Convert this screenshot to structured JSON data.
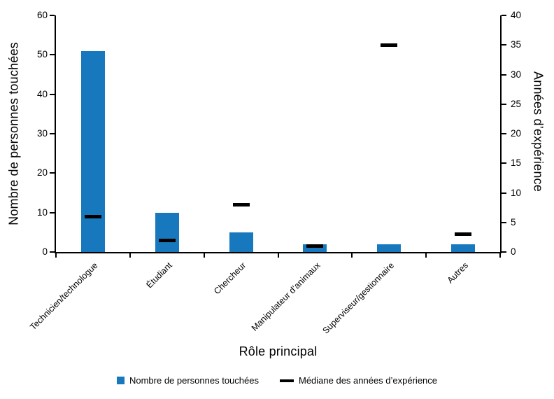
{
  "chart_data": {
    "type": "combo",
    "title": "",
    "categories": [
      "Technicien/technologue",
      "Étudiant",
      "Chercheur",
      "Manipulateur d’animaux",
      "Superviseur/gestionnaire",
      "Autres"
    ],
    "series": [
      {
        "name": "Nombre de personnes touchées",
        "type": "bar",
        "axis": "left",
        "color": "#1878be",
        "values": [
          51,
          10,
          5,
          2,
          2,
          2
        ]
      },
      {
        "name": "Médiane des années d’expérience",
        "type": "dash",
        "axis": "right",
        "color": "#000000",
        "values": [
          6,
          2,
          8,
          1,
          35,
          3
        ]
      }
    ],
    "xlabel": "Rôle principal",
    "ylabel_left": "Nombre de personnes touchées",
    "ylabel_right": "Années d’expérience",
    "ylim_left": [
      0,
      60
    ],
    "ytick_step_left": 10,
    "ylim_right": [
      0,
      40
    ],
    "ytick_step_right": 5,
    "grid": false,
    "legend_position": "bottom",
    "axis_color": "#000000",
    "background": "#ffffff"
  }
}
